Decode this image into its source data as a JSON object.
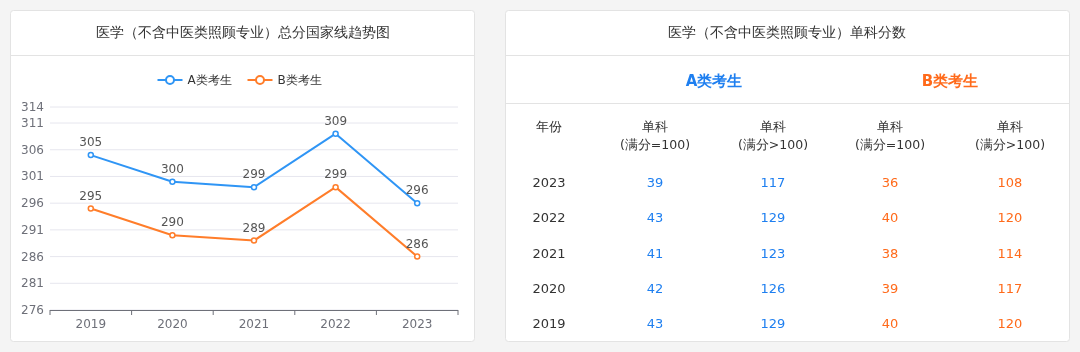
{
  "chart_data": [
    {
      "type": "line",
      "title": "医学（不含中医类照顾专业）总分国家线趋势图",
      "categories": [
        "2019",
        "2020",
        "2021",
        "2022",
        "2023"
      ],
      "series": [
        {
          "name": "A类考生",
          "color": "#2f95f5",
          "values": [
            305,
            300,
            299,
            309,
            296
          ]
        },
        {
          "name": "B类考生",
          "color": "#ff7d2a",
          "values": [
            295,
            290,
            289,
            299,
            286
          ]
        }
      ],
      "ylim": [
        276,
        314
      ],
      "yticks": [
        276,
        281,
        286,
        291,
        296,
        301,
        306,
        311,
        314
      ],
      "grid": "y",
      "legend": "top",
      "marker": "circle",
      "line_style": "solid",
      "data_labels": true
    },
    {
      "type": "heatmap",
      "title": "医学（不含中医类照顾专业）单科分数",
      "subtitle": "A类考生",
      "ylabel": "年份",
      "color": "#1e7ff0",
      "data_labels": true,
      "categories": [
        "单科\n(满分=100)",
        "单科\n(满分>100)"
      ],
      "y_categories": [
        "2023",
        "2022",
        "2021",
        "2020",
        "2019"
      ],
      "cells": [
        [
          39,
          117
        ],
        [
          43,
          129
        ],
        [
          41,
          123
        ],
        [
          42,
          126
        ],
        [
          43,
          129
        ]
      ]
    },
    {
      "type": "heatmap",
      "subtitle": "B类考生",
      "color": "#ff6a1a",
      "data_labels": true,
      "tick_labels": "x",
      "categories": [
        "单科\n(满分=100)",
        "单科\n(满分>100)"
      ],
      "y_categories": [
        "2023",
        "2022",
        "2021",
        "2020",
        "2019"
      ],
      "cells": [
        [
          36,
          108
        ],
        [
          40,
          120
        ],
        [
          38,
          114
        ],
        [
          39,
          117
        ],
        [
          40,
          120
        ]
      ]
    }
  ]
}
